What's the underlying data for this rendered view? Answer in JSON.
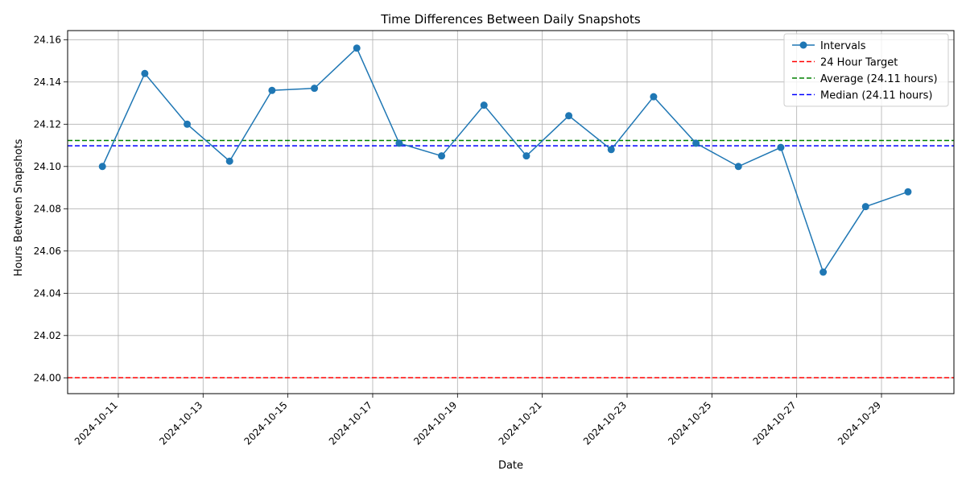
{
  "chart_data": {
    "type": "line",
    "title": "Time Differences Between Daily Snapshots",
    "xlabel": "Date",
    "ylabel": "Hours Between Snapshots",
    "grid": true,
    "legend_position": "top-right",
    "x_ticks": [
      "2024-10-11",
      "2024-10-13",
      "2024-10-15",
      "2024-10-17",
      "2024-10-19",
      "2024-10-21",
      "2024-10-23",
      "2024-10-25",
      "2024-10-27",
      "2024-10-29"
    ],
    "y_ticks": [
      "24.00",
      "24.02",
      "24.04",
      "24.06",
      "24.08",
      "24.10",
      "24.12",
      "24.14",
      "24.16"
    ],
    "xlim": [
      "2024-10-09T19:19",
      "2024-10-30T17:00"
    ],
    "ylim": [
      23.9925,
      24.1643
    ],
    "series": [
      {
        "name": "Intervals",
        "color": "#1f77b4",
        "x": [
          "2024-10-10T15:00",
          "2024-10-11T15:00",
          "2024-10-12T15:00",
          "2024-10-13T15:00",
          "2024-10-14T15:00",
          "2024-10-15T15:00",
          "2024-10-16T15:00",
          "2024-10-17T15:00",
          "2024-10-18T15:00",
          "2024-10-19T15:00",
          "2024-10-20T15:00",
          "2024-10-21T15:00",
          "2024-10-22T15:00",
          "2024-10-23T15:00",
          "2024-10-24T15:00",
          "2024-10-25T15:00",
          "2024-10-26T15:00",
          "2024-10-27T15:00",
          "2024-10-28T15:00",
          "2024-10-29T15:00"
        ],
        "y": [
          24.1,
          24.144,
          24.12,
          24.1025,
          24.136,
          24.137,
          24.156,
          24.111,
          24.105,
          24.129,
          24.105,
          24.124,
          24.108,
          24.133,
          24.111,
          24.1,
          24.109,
          24.05,
          24.081,
          24.088
        ]
      }
    ],
    "reference_lines": [
      {
        "name": "24 Hour Target",
        "value": 24.0,
        "color": "#ff0000"
      },
      {
        "name": "Average (24.11 hours)",
        "value": 24.1123,
        "color": "#008000"
      },
      {
        "name": "Median (24.11 hours)",
        "value": 24.1098,
        "color": "#0000ff"
      }
    ]
  }
}
